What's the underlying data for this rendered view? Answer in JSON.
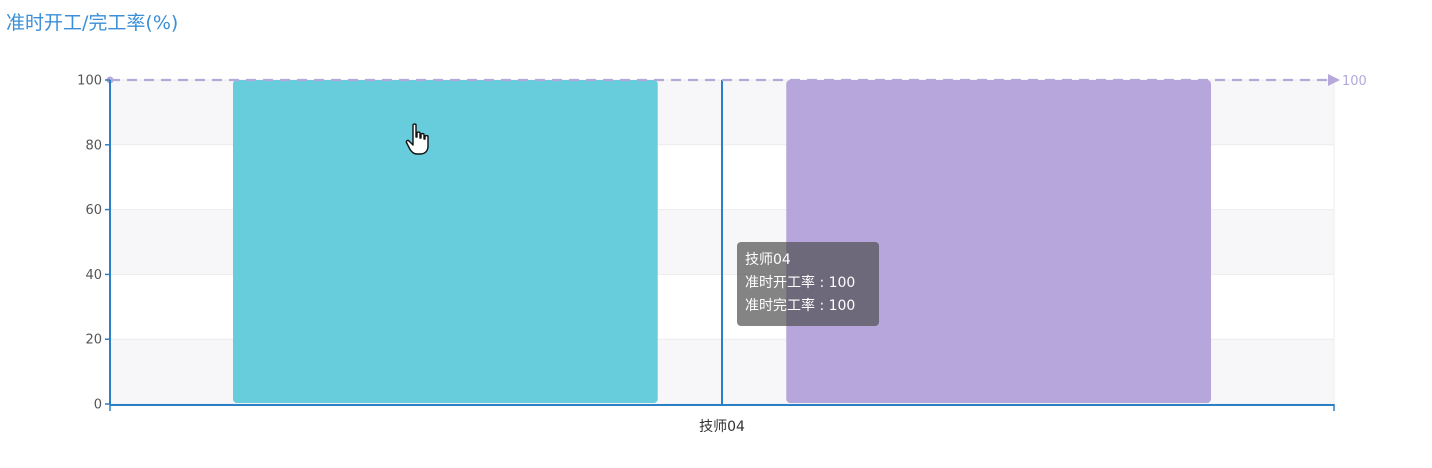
{
  "title": "准时开工/完工率(%)",
  "chart_data": {
    "type": "bar",
    "categories": [
      "技师04"
    ],
    "series": [
      {
        "values": [
          100
        ],
        "color": "#67ccdc"
      },
      {
        "values": [
          100
        ],
        "color": "#b6a6dc"
      }
    ],
    "ylim": [
      0,
      100
    ],
    "yticks": [
      "0",
      "20",
      "40",
      "60",
      "80",
      "100"
    ],
    "grid": true,
    "mark_line": {
      "value": 100,
      "label": "100",
      "color": "#b4a9d8"
    }
  },
  "tooltip": {
    "title": "技师04",
    "rows": [
      {
        "text": "准时开工率 : 100"
      },
      {
        "text": "准时完工率 : 100"
      }
    ]
  },
  "icons": {
    "cursor": "hand-pointer-icon"
  }
}
